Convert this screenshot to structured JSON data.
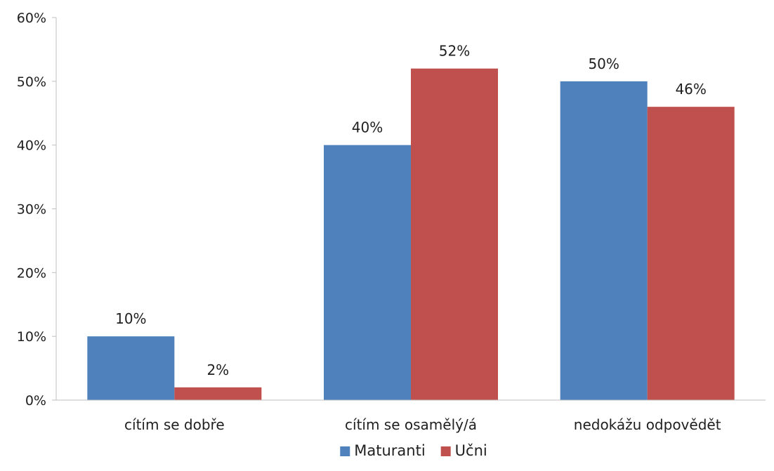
{
  "chart_data": {
    "type": "bar",
    "categories": [
      "cítím se dobře",
      "cítím se osamělý/á",
      "nedokážu odpovědět"
    ],
    "series": [
      {
        "name": "Maturanti",
        "color": "#4F81BD",
        "values": [
          10,
          40,
          50
        ],
        "labels": [
          "10%",
          "40%",
          "50%"
        ]
      },
      {
        "name": "Učni",
        "color": "#C0504D",
        "values": [
          2,
          52,
          46
        ],
        "labels": [
          "2%",
          "52%",
          "46%"
        ]
      }
    ],
    "y_ticks": [
      "0%",
      "10%",
      "20%",
      "30%",
      "40%",
      "50%",
      "60%"
    ],
    "ylim": [
      0,
      60
    ],
    "unit": "%",
    "grid": false,
    "legend_position": "bottom",
    "xlabel": "",
    "ylabel": "",
    "title": ""
  }
}
